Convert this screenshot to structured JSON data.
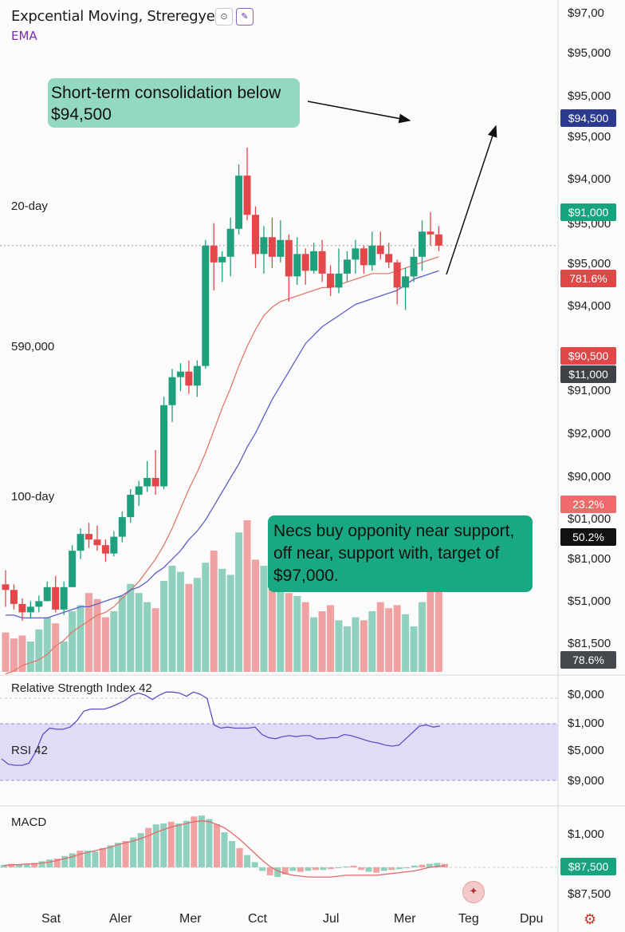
{
  "header": {
    "title": "Expcential Moving, Streregyes",
    "indicator": "EMA"
  },
  "annotations": {
    "top": "Short-term consolidation below $94,500",
    "bottom": "Necs buy opponity near support, off near, support with, target of $97,000.",
    "ma20": "20-day",
    "ma100": "100-day",
    "support_level": "590,000"
  },
  "price_axis": [
    "$97,00",
    "$95,000",
    "$95,000",
    "$95,000",
    "$94,000",
    "$95,000",
    "$95,000",
    "$94,000",
    "$91,000",
    "$92,000",
    "$90,000",
    "$01,000",
    "$81,000",
    "$51,000",
    "$81,500"
  ],
  "tags": [
    {
      "text": "$94,500",
      "bg": "#2b3a8f",
      "fg": "#ffffff"
    },
    {
      "text": "$91,000",
      "bg": "#17a37e",
      "fg": "#ffffff"
    },
    {
      "text": "781.6%",
      "bg": "#e04848",
      "fg": "#ffffff"
    },
    {
      "text": "$90,500",
      "bg": "#e04848",
      "fg": "#ffffff"
    },
    {
      "text": "$11,000",
      "bg": "#3f4348",
      "fg": "#ffffff"
    },
    {
      "text": "23.2%",
      "bg": "#ef6a6a",
      "fg": "#ffffff"
    },
    {
      "text": "50.2%",
      "bg": "#111111",
      "fg": "#ffffff"
    },
    {
      "text": "78.6%",
      "bg": "#45494e",
      "fg": "#ffffff"
    },
    {
      "text": "$87,500",
      "bg": "#17a37e",
      "fg": "#ffffff"
    }
  ],
  "rsi": {
    "label": "Relative Strength Index 42",
    "sub": "RSI 42",
    "axis": [
      "$0,000",
      "$1,000",
      "$5,000",
      "$9,000"
    ],
    "values": [
      33,
      28,
      27,
      27,
      29,
      40,
      56,
      62,
      61,
      61,
      63,
      69,
      78,
      80,
      80,
      80,
      82,
      85,
      88,
      93,
      95,
      93,
      89,
      93,
      96,
      96,
      95,
      92,
      96,
      94,
      90,
      65,
      62,
      63,
      62,
      62,
      62,
      63,
      56,
      53,
      52,
      54,
      55,
      54,
      55,
      55,
      52,
      52,
      53,
      53,
      56,
      55,
      53,
      51,
      49,
      48,
      46,
      45,
      46,
      52,
      58,
      64,
      65,
      63,
      64
    ]
  },
  "macd": {
    "label": "MACD",
    "axis": [
      "$1,000",
      "$87,500"
    ],
    "histogram": [
      0.3,
      0.4,
      0.3,
      0.4,
      0.5,
      0.7,
      0.9,
      1.0,
      1.3,
      1.6,
      1.9,
      1.9,
      1.8,
      2.2,
      2.5,
      2.8,
      3.0,
      3.4,
      3.9,
      4.5,
      4.9,
      5.0,
      5.2,
      5.0,
      5.3,
      5.8,
      5.9,
      5.5,
      4.9,
      4.0,
      3.0,
      2.2,
      1.4,
      0.6,
      -0.4,
      -0.9,
      -1.1,
      -0.8,
      -0.4,
      -0.5,
      -0.4,
      -0.3,
      -0.3,
      -0.2,
      -0.1,
      0.1,
      0.2,
      -0.3,
      -0.5,
      -0.6,
      -0.4,
      -0.3,
      -0.2,
      -0.1,
      0.2,
      0.3,
      0.4,
      0.5,
      0.4
    ],
    "signal": [
      0.2,
      0.3,
      0.3,
      0.4,
      0.4,
      0.5,
      0.6,
      0.8,
      1.0,
      1.2,
      1.5,
      1.7,
      1.9,
      2.1,
      2.3,
      2.6,
      2.8,
      3.0,
      3.3,
      3.6,
      4.0,
      4.3,
      4.6,
      4.8,
      5.0,
      5.2,
      5.3,
      5.2,
      4.9,
      4.5,
      3.9,
      3.2,
      2.4,
      1.6,
      0.8,
      0.1,
      -0.4,
      -0.7,
      -0.9,
      -1.0,
      -1.1,
      -1.1,
      -1.1,
      -1.1,
      -1.0,
      -0.9,
      -0.9,
      -0.9,
      -0.9,
      -0.9,
      -0.8,
      -0.7,
      -0.6,
      -0.5,
      -0.4,
      -0.2,
      0.0,
      0.1,
      0.2
    ]
  },
  "x_axis": [
    "Sat",
    "Aler",
    "Mer",
    "Cct",
    "Jul",
    "Mer",
    "Teg",
    "Dpu"
  ],
  "chart_data": {
    "type": "candlestick",
    "title": "Expcential Moving, Streregyes",
    "ylim": [
      78000,
      97000
    ],
    "levels": {
      "target": 94500,
      "ma20_line": 93000,
      "support": 90500,
      "ma100_line": 89000
    },
    "ohlc": [
      [
        80.5,
        81.0,
        79.7,
        80.3
      ],
      [
        80.3,
        80.5,
        79.6,
        79.8
      ],
      [
        79.8,
        80.0,
        79.2,
        79.5
      ],
      [
        79.5,
        79.9,
        79.3,
        79.7
      ],
      [
        79.7,
        80.1,
        79.5,
        79.9
      ],
      [
        79.9,
        80.6,
        79.9,
        80.4
      ],
      [
        80.4,
        80.8,
        79.5,
        79.6
      ],
      [
        79.6,
        80.6,
        79.4,
        80.4
      ],
      [
        80.4,
        81.9,
        80.4,
        81.7
      ],
      [
        81.7,
        82.5,
        81.4,
        82.3
      ],
      [
        82.3,
        82.7,
        81.8,
        82.1
      ],
      [
        82.1,
        82.6,
        81.7,
        81.9
      ],
      [
        81.9,
        82.1,
        81.3,
        81.6
      ],
      [
        81.6,
        82.4,
        81.5,
        82.2
      ],
      [
        82.2,
        83.1,
        82.0,
        82.9
      ],
      [
        82.9,
        83.9,
        82.7,
        83.7
      ],
      [
        83.7,
        84.2,
        83.3,
        84.0
      ],
      [
        84.0,
        84.9,
        83.8,
        84.3
      ],
      [
        84.3,
        85.3,
        83.7,
        84.0
      ],
      [
        84.0,
        87.2,
        83.9,
        86.9
      ],
      [
        86.9,
        88.2,
        86.3,
        87.9
      ],
      [
        87.9,
        88.4,
        87.4,
        88.1
      ],
      [
        88.1,
        88.5,
        87.3,
        87.6
      ],
      [
        87.6,
        88.5,
        87.2,
        88.3
      ],
      [
        88.3,
        92.8,
        88.2,
        92.6
      ],
      [
        92.6,
        93.4,
        91.0,
        92.0
      ],
      [
        92.0,
        92.4,
        91.3,
        92.2
      ],
      [
        92.2,
        93.6,
        91.5,
        93.2
      ],
      [
        93.2,
        95.5,
        93.0,
        95.1
      ],
      [
        95.1,
        96.1,
        93.5,
        93.7
      ],
      [
        93.7,
        94.0,
        91.8,
        92.3
      ],
      [
        92.3,
        93.3,
        91.6,
        92.9
      ],
      [
        92.9,
        93.6,
        91.8,
        92.2
      ],
      [
        92.2,
        93.5,
        92.0,
        92.8
      ],
      [
        92.8,
        93.0,
        90.6,
        91.5
      ],
      [
        91.5,
        92.9,
        91.2,
        92.3
      ],
      [
        92.3,
        92.5,
        91.2,
        91.7
      ],
      [
        91.7,
        92.7,
        91.6,
        92.4
      ],
      [
        92.4,
        92.8,
        91.3,
        91.6
      ],
      [
        91.6,
        91.9,
        90.8,
        91.1
      ],
      [
        91.1,
        92.5,
        90.9,
        91.6
      ],
      [
        91.6,
        92.4,
        91.3,
        92.1
      ],
      [
        92.1,
        92.8,
        91.6,
        92.5
      ],
      [
        92.5,
        92.6,
        91.6,
        91.9
      ],
      [
        91.9,
        93.1,
        91.7,
        92.6
      ],
      [
        92.6,
        93.1,
        92.1,
        92.3
      ],
      [
        92.3,
        92.7,
        91.8,
        92.0
      ],
      [
        92.0,
        92.1,
        90.5,
        91.1
      ],
      [
        91.1,
        91.8,
        90.3,
        91.5
      ],
      [
        91.5,
        92.5,
        91.3,
        92.2
      ],
      [
        92.2,
        93.5,
        91.7,
        93.1
      ],
      [
        93.1,
        93.8,
        92.6,
        93.0
      ],
      [
        93.0,
        93.3,
        92.4,
        92.6
      ]
    ],
    "ema_fast": [
      77.3,
      77.4,
      77.6,
      77.7,
      77.8,
      78.0,
      78.3,
      78.5,
      78.8,
      79.0,
      79.2,
      79.4,
      79.5,
      79.7,
      80.0,
      80.3,
      80.6,
      81.0,
      81.4,
      81.9,
      82.5,
      83.2,
      83.9,
      84.5,
      85.2,
      86.0,
      86.8,
      87.5,
      88.3,
      89.0,
      89.6,
      90.1,
      90.4,
      90.6,
      90.7,
      90.8,
      90.9,
      91.0,
      91.1,
      91.1,
      91.2,
      91.3,
      91.4,
      91.5,
      91.6,
      91.6,
      91.6,
      91.7,
      91.8,
      91.9,
      92.0,
      92.1,
      92.2
    ],
    "ema_slow": [
      79.4,
      79.4,
      79.3,
      79.3,
      79.3,
      79.3,
      79.4,
      79.5,
      79.6,
      79.7,
      79.7,
      79.8,
      79.9,
      80.0,
      80.1,
      80.3,
      80.4,
      80.6,
      80.9,
      81.1,
      81.4,
      81.7,
      82.1,
      82.4,
      82.8,
      83.3,
      83.8,
      84.3,
      84.8,
      85.4,
      85.9,
      86.5,
      87.1,
      87.6,
      88.1,
      88.6,
      89.1,
      89.4,
      89.7,
      89.9,
      90.1,
      90.3,
      90.5,
      90.6,
      90.7,
      90.8,
      90.9,
      91.0,
      91.2,
      91.4,
      91.5,
      91.6,
      91.7
    ],
    "volume": [
      0.26,
      0.22,
      0.24,
      0.2,
      0.28,
      0.36,
      0.32,
      0.2,
      0.4,
      0.44,
      0.52,
      0.48,
      0.36,
      0.4,
      0.5,
      0.58,
      0.52,
      0.46,
      0.42,
      0.6,
      0.7,
      0.66,
      0.58,
      0.62,
      0.72,
      0.8,
      0.68,
      0.64,
      0.92,
      1.0,
      0.74,
      0.7,
      0.66,
      0.6,
      0.52,
      0.5,
      0.46,
      0.36,
      0.4,
      0.44,
      0.34,
      0.3,
      0.36,
      0.34,
      0.4,
      0.46,
      0.42,
      0.44,
      0.38,
      0.3,
      0.46,
      0.6,
      0.56
    ]
  }
}
